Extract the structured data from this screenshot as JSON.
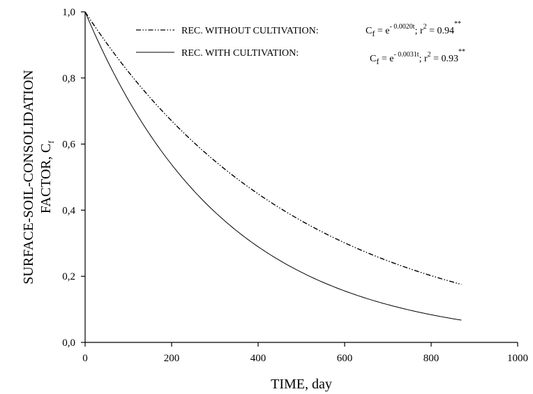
{
  "chart_data": {
    "type": "line",
    "xlabel": "TIME, day",
    "ylabel_line1": "SURFACE-SOIL-CONSOLIDATION",
    "ylabel_line2_main": "FACTOR, C",
    "ylabel_line2_sub": "f",
    "xlim": [
      0,
      1000
    ],
    "ylim": [
      0,
      1
    ],
    "x_ticks": [
      0,
      200,
      400,
      600,
      800,
      1000
    ],
    "x_tick_labels": [
      "0",
      "200",
      "400",
      "600",
      "800",
      "1000"
    ],
    "y_ticks": [
      0,
      0.2,
      0.4,
      0.6,
      0.8,
      1.0
    ],
    "y_tick_labels": [
      "0,0",
      "0,2",
      "0,4",
      "0,6",
      "0,8",
      "1,0"
    ],
    "grid": false,
    "legend_position": "top-right",
    "series": [
      {
        "name": "REC. WITHOUT CULTIVATION:",
        "style": "dash-dot",
        "k": 0.002,
        "x_range": [
          0,
          870
        ],
        "equation": {
          "lhs": "C",
          "lhs_sub": "f",
          "eq": " = e",
          "exponent": "- 0.0020t",
          "r2_lead": ";   r",
          "r2_sup": "2",
          "r2_value": " = 0.94",
          "stars": "**"
        },
        "x": [
          0,
          100,
          200,
          300,
          400,
          500,
          600,
          700,
          800,
          870
        ],
        "y": [
          1.0,
          0.819,
          0.67,
          0.549,
          0.449,
          0.368,
          0.301,
          0.247,
          0.202,
          0.176
        ]
      },
      {
        "name": "REC. WITH CULTIVATION:",
        "style": "solid",
        "k": 0.0031,
        "x_range": [
          0,
          870
        ],
        "equation": {
          "lhs": "C",
          "lhs_sub": "f",
          "eq": " = e",
          "exponent": "- 0.0031t",
          "r2_lead": ";   r",
          "r2_sup": "2",
          "r2_value": " = 0.93",
          "stars": "**"
        },
        "x": [
          0,
          100,
          200,
          300,
          400,
          500,
          600,
          700,
          800,
          870
        ],
        "y": [
          1.0,
          0.733,
          0.538,
          0.395,
          0.289,
          0.212,
          0.156,
          0.114,
          0.084,
          0.067
        ]
      }
    ]
  }
}
